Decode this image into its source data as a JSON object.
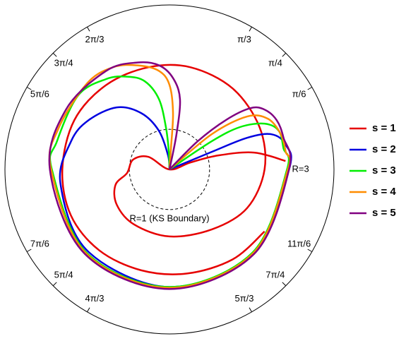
{
  "chart_data": {
    "type": "polar",
    "rlim": [
      0,
      4.1
    ],
    "angle_ticks": [
      {
        "value": 0.5236,
        "label": "π/6"
      },
      {
        "value": 0.7854,
        "label": "π/4"
      },
      {
        "value": 1.0472,
        "label": "π/3"
      },
      {
        "value": 2.0944,
        "label": "2π/3"
      },
      {
        "value": 2.3562,
        "label": "3π/4"
      },
      {
        "value": 2.618,
        "label": "5π/6"
      },
      {
        "value": 3.6652,
        "label": "7π/6"
      },
      {
        "value": 3.927,
        "label": "5π/4"
      },
      {
        "value": 4.1888,
        "label": "4π/3"
      },
      {
        "value": 5.236,
        "label": "5π/3"
      },
      {
        "value": 5.4978,
        "label": "7π/4"
      },
      {
        "value": 5.7596,
        "label": "11π/6"
      }
    ],
    "reference_circles": [
      {
        "r": 1,
        "label": "R=1 (KS Boundary)",
        "style": "dashed"
      },
      {
        "r": 3,
        "label": "R=3",
        "style": "none"
      }
    ],
    "legend": "right",
    "series": [
      {
        "name": "s = 1",
        "color": "#e60000",
        "theta": [
          0.073,
          0.197,
          0.278,
          0.321,
          0,
          2.601,
          2.88,
          -3.058,
          -2.862,
          -2.553,
          -2.142,
          -1.571,
          -0.956,
          -0.464,
          0,
          0.438,
          0.908,
          1.367,
          1.775,
          2.215,
          2.663,
          3.142,
          -2.707,
          -2.286,
          -1.843,
          -1.403,
          -0.958,
          -0.578
        ],
        "r": [
          2.9,
          2.15,
          1.28,
          0.55,
          0,
          0.61,
          0.94,
          1.06,
          1.4,
          1.58,
          1.63,
          1.67,
          1.83,
          2.16,
          2.37,
          2.48,
          2.56,
          2.6,
          2.6,
          2.63,
          2.67,
          2.67,
          2.71,
          2.67,
          2.61,
          2.63,
          2.74,
          2.83
        ]
      },
      {
        "name": "s = 2",
        "color": "#0000e0",
        "theta": [
          0,
          0.394,
          0.387,
          0.332,
          0.209,
          0,
          -0.785,
          -1.571,
          -2.356,
          -3.012,
          2.862,
          2.595,
          2.275,
          2.035,
          1.838,
          1.67,
          1.6
        ],
        "r": [
          0,
          1.14,
          2.09,
          2.69,
          2.96,
          2.98,
          2.95,
          2.93,
          2.88,
          2.74,
          2.55,
          2.36,
          2.03,
          1.57,
          1.0,
          0.35,
          0
        ]
      },
      {
        "name": "s = 3",
        "color": "#00ee00",
        "theta": [
          0,
          0.588,
          0.541,
          0.449,
          0.34,
          0.183,
          0,
          -0.785,
          -1.571,
          -2.356,
          3.142,
          2.897,
          2.461,
          2.182,
          1.997,
          1.843,
          1.719,
          1.655,
          1.606,
          1.6
        ],
        "r": [
          0,
          1.27,
          2.05,
          2.63,
          2.89,
          2.89,
          2.93,
          2.93,
          2.93,
          2.93,
          2.93,
          2.89,
          2.93,
          2.75,
          2.54,
          2.28,
          1.77,
          1.06,
          0.44,
          0
        ]
      },
      {
        "name": "s = 4",
        "color": "#ff8c00",
        "theta": [
          0,
          0.695,
          0.599,
          0.475,
          0.307,
          0.15,
          0,
          -0.785,
          -1.571,
          -2.356,
          3.142,
          2.793,
          2.335,
          2.075,
          1.866,
          1.677,
          1.571,
          1.508,
          1.501,
          1.5
        ],
        "r": [
          0,
          1.37,
          2.34,
          2.76,
          2.91,
          2.93,
          2.95,
          2.95,
          2.95,
          2.95,
          2.95,
          2.95,
          2.97,
          2.91,
          2.71,
          2.47,
          2.11,
          1.41,
          0.53,
          0
        ]
      },
      {
        "name": "s = 5",
        "color": "#800080",
        "theta": [
          0,
          0.785,
          0.719,
          0.648,
          0.562,
          0.431,
          0.271,
          0,
          -0.785,
          -1.571,
          -2.356,
          3.142,
          2.618,
          2.142,
          1.859,
          1.672,
          1.532,
          1.422,
          1.374,
          1.35
        ],
        "r": [
          0,
          0.99,
          1.87,
          2.53,
          2.8,
          2.94,
          2.95,
          2.98,
          2.98,
          2.98,
          2.98,
          2.98,
          2.98,
          2.92,
          2.78,
          2.61,
          2.28,
          1.77,
          0.89,
          0
        ]
      }
    ]
  }
}
